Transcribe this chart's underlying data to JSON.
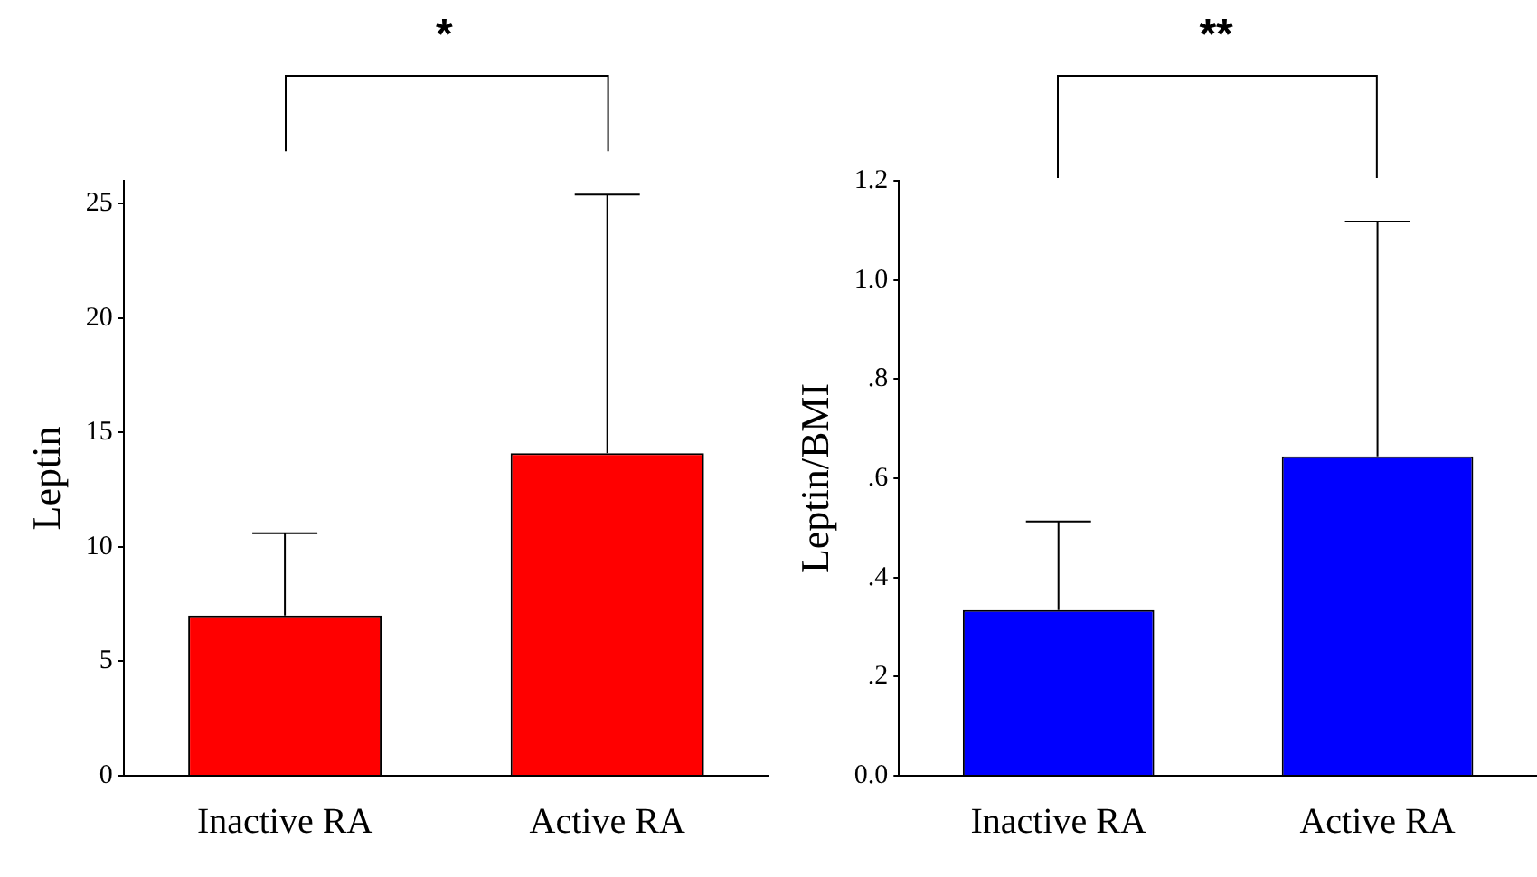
{
  "chart_data": [
    {
      "type": "bar",
      "categories": [
        "Inactive RA",
        "Active RA"
      ],
      "values": [
        7.0,
        14.1
      ],
      "color": "#ff0000",
      "errors": [
        [
          7.0,
          10.6
        ],
        [
          14.1,
          25.4
        ]
      ],
      "ylabel": "Leptin",
      "ylim": [
        0,
        26
      ],
      "yticks": [
        0,
        5,
        10,
        15,
        20,
        25
      ],
      "annotations": [
        "*"
      ]
    },
    {
      "type": "bar",
      "categories": [
        "Inactive RA",
        "Active RA"
      ],
      "values": [
        0.334,
        0.644
      ],
      "color": "#0000ff",
      "errors": [
        [
          0.334,
          0.513
        ],
        [
          0.644,
          1.118
        ]
      ],
      "ylabel": "Leptin/BMI",
      "ylim": [
        0,
        1.2
      ],
      "yticks": [
        {
          "value": 0,
          "label": "0.0"
        },
        {
          "value": 0.2,
          "label": ".2"
        },
        {
          "value": 0.4,
          "label": ".4"
        },
        {
          "value": 0.6,
          "label": ".6"
        },
        {
          "value": 0.8,
          "label": ".8"
        },
        {
          "value": 1.0,
          "label": "1.0"
        },
        {
          "value": 1.2,
          "label": "1.2"
        }
      ],
      "annotations": [
        "**"
      ]
    }
  ]
}
